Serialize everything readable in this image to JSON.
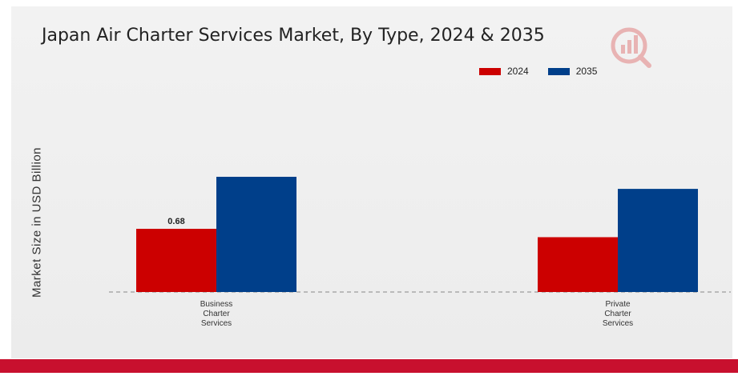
{
  "chart_data": {
    "type": "bar",
    "title": "Japan Air Charter Services Market, By Type, 2024 & 2035",
    "ylabel": "Market Size in USD Billion",
    "xlabel": "",
    "categories": [
      "Business Charter Services",
      "Private Charter Services"
    ],
    "category_lines": [
      [
        "Business",
        "Charter",
        "Services"
      ],
      [
        "Private",
        "Charter",
        "Services"
      ]
    ],
    "series": [
      {
        "name": "2024",
        "color": "#cc0000",
        "values": [
          0.68,
          0.59
        ]
      },
      {
        "name": "2035",
        "color": "#003f8a",
        "values": [
          1.24,
          1.11
        ]
      }
    ],
    "data_labels": [
      {
        "series": 0,
        "category": 0,
        "text": "0.68"
      }
    ],
    "ylim": [
      0,
      1.24
    ],
    "grid": false,
    "legend_position": "top-right"
  },
  "colors": {
    "accent_bar": "#c8102e",
    "baseline": "#888888"
  },
  "icons": {
    "logo": "market-research-logo-icon"
  }
}
